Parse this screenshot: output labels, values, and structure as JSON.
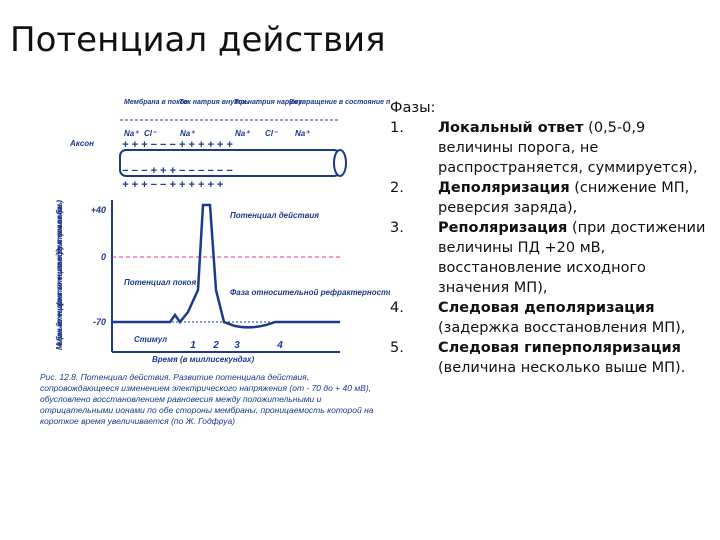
{
  "slide": {
    "title": "Потенциал действия",
    "figure": {
      "stage_labels": [
        "Мембрана в покое",
        "Ток натрия внутрь",
        "Ток натрия наружу",
        "Возвращение в состояние покоя"
      ],
      "axon_label": "Аксон",
      "ions_top": [
        "Na⁺",
        "Cl⁻",
        "Na⁺",
        "Na⁺",
        "Cl⁻",
        "Na⁺"
      ],
      "signs_outer_top": "+ + + − − − + + + + + +",
      "signs_inner_top": "− − − + + + − − − − − −",
      "signs_outer_bottom": "+ + + − − + + + + + +",
      "y_axis_label": "Мембранный потенциал (разность потенциалов между двумя сторонами мембраны)",
      "y_ticks": [
        "+40",
        "0",
        "-70"
      ],
      "x_ticks": [
        "1",
        "2",
        "3",
        "4"
      ],
      "x_axis_label": "Время (в миллисекундах)",
      "annotations": {
        "action_potential": "Потенциал действия",
        "resting_potential": "Потенциал покоя",
        "refractory": "Фаза относительной рефрактерности",
        "stimulus": "Стимул"
      },
      "caption": "Рис. 12.8. Потенциал действия. Развитие потенциала действия, сопровождающееся изменением электрического напряжения (от - 70 до + 40 мВ), обусловлено восстановлением равновесия между положительными и отрицательными ионами по обе стороны мембраны, проницаемость которой на короткое время увеличивается (по Ж. Годфруа)"
    },
    "phases": {
      "heading": "Фазы:",
      "items": [
        {
          "number": "1.",
          "term": "Локальный ответ",
          "text": " (0,5-0,9 величины порога, не распространяется, суммируется),"
        },
        {
          "number": "2.",
          "term": "Деполяризация",
          "text": " (снижение МП, реверсия заряда),"
        },
        {
          "number": "3.",
          "term": "Реполяризация",
          "text": " (при достижении величины ПД +20 мВ, восстановление исходного значения МП),"
        },
        {
          "number": "4.",
          "term": "Следовая деполяризация",
          "text": " (задержка восстановления МП),"
        },
        {
          "number": "5.",
          "term": "Следовая гиперполяризация",
          "text": " (величина несколько выше МП)."
        }
      ]
    }
  }
}
